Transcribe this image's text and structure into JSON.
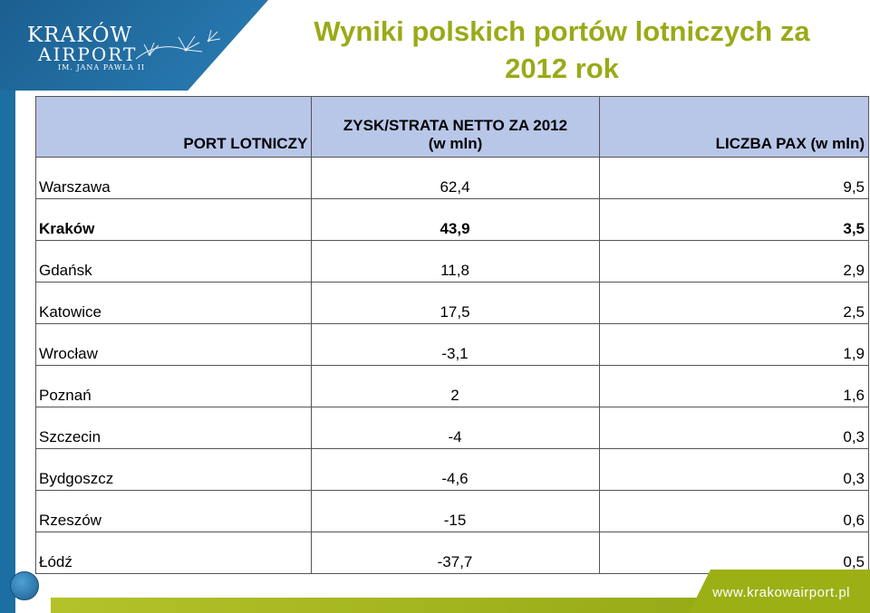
{
  "logo": {
    "line1": "KRAKÓW",
    "line2": "AIRPORT",
    "line3": "IM. JANA PAWŁA II"
  },
  "title": {
    "line1": "Wyniki polskich portów lotniczych za",
    "line2": "2012 rok"
  },
  "table": {
    "headers": {
      "port": "PORT LOTNICZY",
      "profit_line1": "ZYSK/STRATA NETTO ZA 2012",
      "profit_line2": "(w mln)",
      "pax": "LICZBA PAX  (w mln)"
    },
    "rows": [
      {
        "port": "Warszawa",
        "profit": "62,4",
        "pax": "9,5"
      },
      {
        "port": "Kraków",
        "profit": "43,9",
        "pax": "3,5"
      },
      {
        "port": "Gdańsk",
        "profit": "11,8",
        "pax": "2,9"
      },
      {
        "port": "Katowice",
        "profit": "17,5",
        "pax": "2,5"
      },
      {
        "port": "Wrocław",
        "profit": "-3,1",
        "pax": "1,9"
      },
      {
        "port": "Poznań",
        "profit": "2",
        "pax": "1,6"
      },
      {
        "port": "Szczecin",
        "profit": "-4",
        "pax": "0,3"
      },
      {
        "port": "Bydgoszcz",
        "profit": "-4,6",
        "pax": "0,3"
      },
      {
        "port": "Rzeszów",
        "profit": "-15",
        "pax": "0,6"
      },
      {
        "port": "Łódź",
        "profit": "-37,7",
        "pax": "0,5"
      }
    ]
  },
  "footer": {
    "url": "www.krakowairport.pl"
  },
  "colors": {
    "title": "#9aaa18",
    "header_bg": "#b8c6e8",
    "brand_blue": "#1d6fa3",
    "footer_green": "#9cb015"
  },
  "icons": {
    "logo_mark": "dandelion-icon",
    "bullet": "circle-icon"
  }
}
